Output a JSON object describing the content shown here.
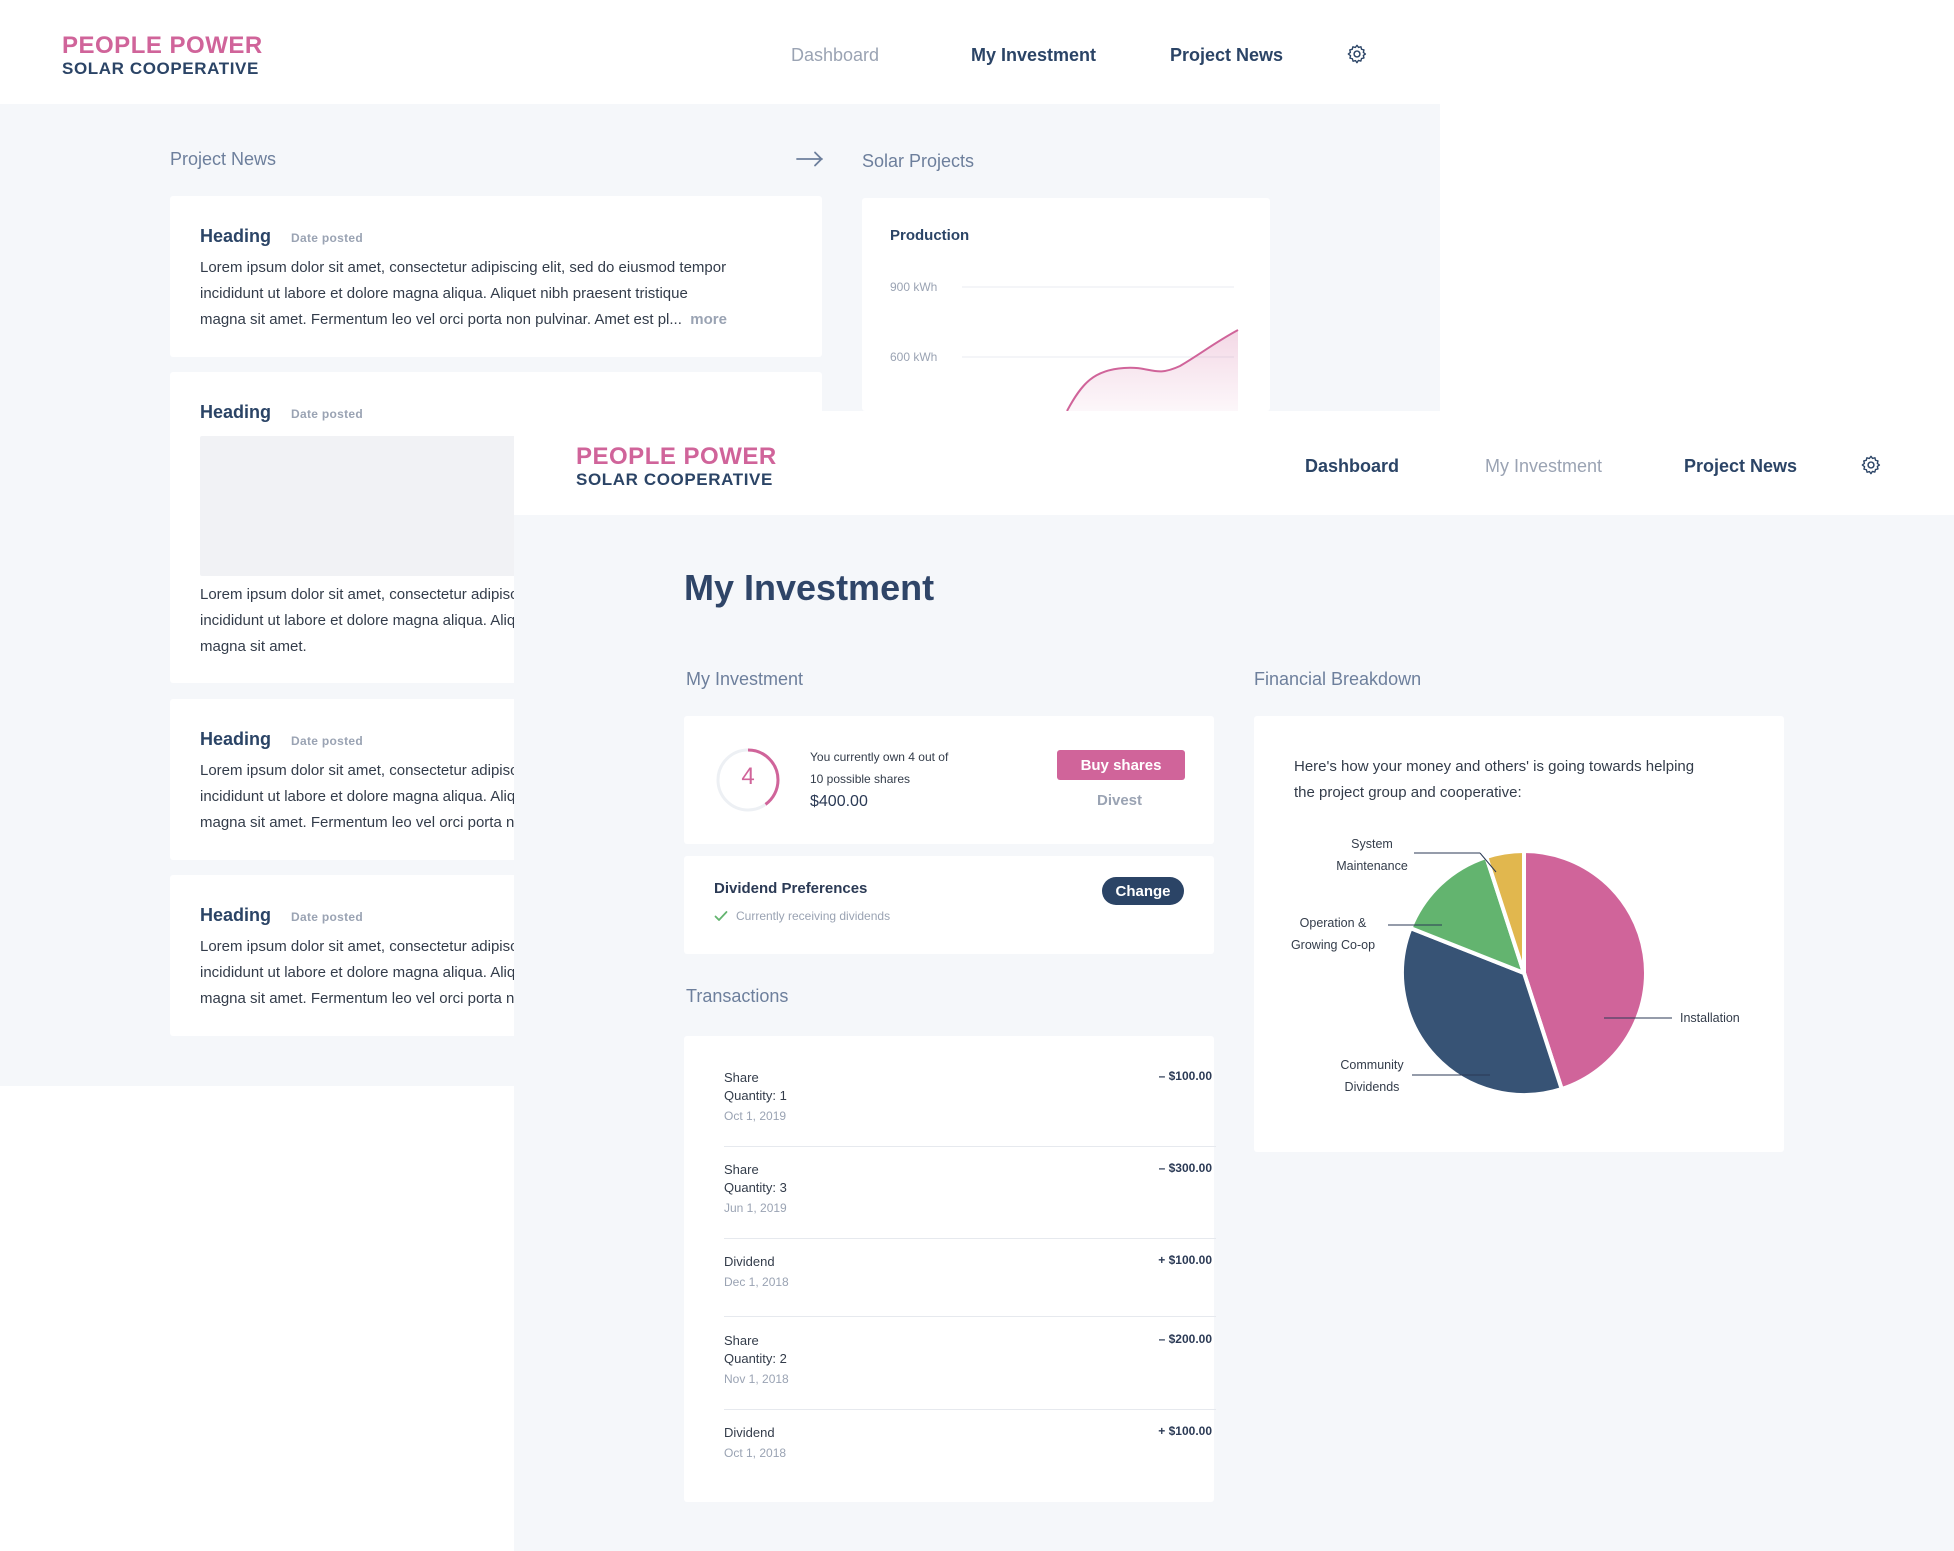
{
  "colors": {
    "brand_pink": "#d0649a",
    "brand_navy": "#2b4466",
    "green": "#63b46f",
    "yellow": "#e1b74e",
    "background": "#f5f7fa"
  },
  "back_window": {
    "logo": {
      "top": "PEOPLE POWER",
      "bottom": "SOLAR COOPERATIVE"
    },
    "nav": {
      "dashboard": "Dashboard",
      "my_investment": "My Investment",
      "project_news": "Project News",
      "settings_icon": "gear-icon"
    },
    "project_news_label": "Project News",
    "solar_projects_label": "Solar Projects",
    "news": [
      {
        "heading": "Heading",
        "date": "Date posted",
        "lines": [
          "Lorem ipsum dolor sit amet, consectetur adipiscing elit, sed do eiusmod tempor",
          "incididunt ut labore et dolore magna aliqua. Aliquet nibh praesent tristique",
          "magna sit amet. Fermentum leo vel orci porta non pulvinar. Amet est pl..."
        ],
        "more": "more"
      },
      {
        "heading": "Heading",
        "date": "Date posted",
        "lines": [
          "Lorem ipsum dolor sit amet, consectetur adipiscing elit, sed do eiusmod tempor",
          "incididunt ut labore et dolore magna aliqua. Aliquet nibh praesent tristique",
          "magna sit amet."
        ]
      },
      {
        "heading": "Heading",
        "date": "Date posted",
        "lines": [
          "Lorem ipsum dolor sit amet, consectetur adipiscing elit, sed do eiusmod tempor",
          "incididunt ut labore et dolore magna aliqua. Aliquet nibh praesent tristique",
          "magna sit amet. Fermentum leo vel orci porta non pulvinar."
        ]
      },
      {
        "heading": "Heading",
        "date": "Date posted",
        "lines": [
          "Lorem ipsum dolor sit amet, consectetur adipiscing elit, sed do eiusmod tempor",
          "incididunt ut labore et dolore magna aliqua. Aliquet nibh praesent tristique",
          "magna sit amet. Fermentum leo vel orci porta non pulvinar."
        ]
      }
    ],
    "production": {
      "title": "Production",
      "tick_900": "900 kWh",
      "tick_600": "600 kWh"
    }
  },
  "front_window": {
    "logo": {
      "top": "PEOPLE POWER",
      "bottom": "SOLAR COOPERATIVE"
    },
    "nav": {
      "dashboard": "Dashboard",
      "my_investment": "My Investment",
      "project_news": "Project News",
      "settings_icon": "gear-icon"
    },
    "page_title": "My Investment",
    "investment": {
      "section_label": "My Investment",
      "shares_owned": "4",
      "shares_progress": 0.4,
      "summary_line1": "You currently own 4 out of",
      "summary_line2": "10 possible shares",
      "amount": "$400.00",
      "buy_label": "Buy shares",
      "divest_label": "Divest"
    },
    "dividend": {
      "title": "Dividend Preferences",
      "status": "Currently receiving dividends",
      "change_label": "Change"
    },
    "transactions": {
      "section_label": "Transactions",
      "rows": [
        {
          "title": "Share",
          "detail": "Quantity: 1",
          "date": "Oct 1, 2019",
          "amount": "– $100.00"
        },
        {
          "title": "Share",
          "detail": "Quantity: 3",
          "date": "Jun 1, 2019",
          "amount": "– $300.00"
        },
        {
          "title": "Dividend",
          "detail": "",
          "date": "Dec 1, 2018",
          "amount": "+ $100.00"
        },
        {
          "title": "Share",
          "detail": "Quantity: 2",
          "date": "Nov 1, 2018",
          "amount": "– $200.00"
        },
        {
          "title": "Dividend",
          "detail": "",
          "date": "Oct 1, 2018",
          "amount": "+ $100.00"
        }
      ]
    },
    "financial": {
      "section_label": "Financial Breakdown",
      "intro_line1": "Here's how your money and others' is going towards helping",
      "intro_line2": "the project group and cooperative:",
      "labels": {
        "maintenance_1": "System",
        "maintenance_2": "Maintenance",
        "operation_1": "Operation &",
        "operation_2": "Growing Co-op",
        "community_1": "Community",
        "community_2": "Dividends",
        "installation": "Installation"
      }
    }
  },
  "chart_data": {
    "type": "pie",
    "slices": [
      {
        "name": "Installation",
        "value": 45,
        "color": "#d0649a"
      },
      {
        "name": "Community Dividends",
        "value": 36,
        "color": "#375375"
      },
      {
        "name": "Operation & Growing Co-op",
        "value": 14,
        "color": "#63b46f"
      },
      {
        "name": "System Maintenance",
        "value": 5,
        "color": "#e1b74e"
      }
    ]
  }
}
